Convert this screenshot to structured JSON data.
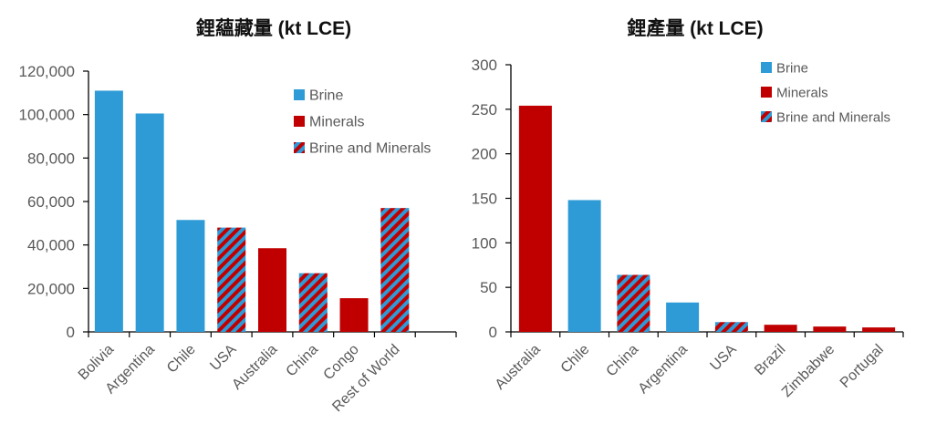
{
  "colors": {
    "brine": "#2E9BD6",
    "minerals": "#C00000",
    "mixed_base": "#2E9BD6",
    "mixed_stripe": "#C00000",
    "axis": "#000000",
    "tick_text": "#595959"
  },
  "chart_data": [
    {
      "type": "bar",
      "title": "鋰蘊藏量 (kt LCE)",
      "categories": [
        "Bolivia",
        "Argentina",
        "Chile",
        "USA",
        "Australia",
        "China",
        "Congo",
        "Rest of World"
      ],
      "values": [
        111000,
        100500,
        51500,
        48000,
        38500,
        27000,
        15500,
        57000
      ],
      "kinds": [
        "brine",
        "brine",
        "brine",
        "mixed",
        "minerals",
        "mixed",
        "minerals",
        "mixed"
      ],
      "ylim": [
        0,
        120000
      ],
      "yticks": [
        0,
        20000,
        40000,
        60000,
        80000,
        100000,
        120000
      ],
      "ytick_labels": [
        "0",
        "20,000",
        "40,000",
        "60,000",
        "80,000",
        "100,000",
        "120,000"
      ],
      "legend": {
        "position": "top-right",
        "entries": [
          {
            "kind": "brine",
            "label": "Brine"
          },
          {
            "kind": "minerals",
            "label": "Minerals"
          },
          {
            "kind": "mixed",
            "label": "Brine and Minerals"
          }
        ]
      },
      "grid": false
    },
    {
      "type": "bar",
      "title": "鋰產量 (kt LCE)",
      "categories": [
        "Australia",
        "Chile",
        "China",
        "Argentina",
        "USA",
        "Brazil",
        "Zimbabwe",
        "Portugal"
      ],
      "values": [
        254,
        148,
        64,
        33,
        11,
        8,
        6,
        5
      ],
      "kinds": [
        "minerals",
        "brine",
        "mixed",
        "brine",
        "mixed",
        "minerals",
        "minerals",
        "minerals"
      ],
      "ylim": [
        0,
        300
      ],
      "yticks": [
        0,
        50,
        100,
        150,
        200,
        250,
        300
      ],
      "ytick_labels": [
        "0",
        "50",
        "100",
        "150",
        "200",
        "250",
        "300"
      ],
      "legend": {
        "position": "top-right",
        "entries": [
          {
            "kind": "brine",
            "label": "Brine"
          },
          {
            "kind": "minerals",
            "label": "Minerals"
          },
          {
            "kind": "mixed",
            "label": "Brine and Minerals"
          }
        ]
      },
      "grid": false
    }
  ]
}
